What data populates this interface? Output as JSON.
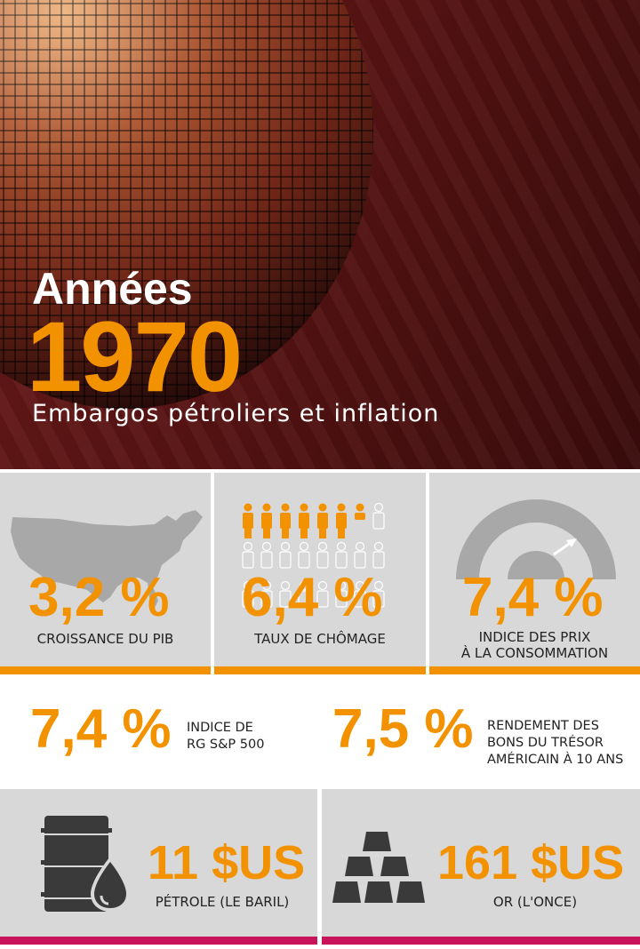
{
  "hero": {
    "title": "Années",
    "year": "1970",
    "subtitle": "Embargos pétroliers et inflation"
  },
  "stats_top": [
    {
      "value": "3,2 %",
      "label": "CROISSANCE DU PIB",
      "icon": "usa-map-icon"
    },
    {
      "value": "6,4 %",
      "label": "TAUX DE CHÔMAGE",
      "icon": "people-icon"
    },
    {
      "value": "7,4 %",
      "label_line1": "INDICE DES PRIX",
      "label_line2": "À LA CONSOMMATION",
      "icon": "gauge-icon"
    }
  ],
  "stats_middle": [
    {
      "value": "7,4 %",
      "label_line1": "INDICE DE",
      "label_line2": "RG S&P 500"
    },
    {
      "value": "7,5 %",
      "label_line1": "RENDEMENT DES",
      "label_line2": "BONS DU TRÉSOR",
      "label_line3": "AMÉRICAIN À 10 ANS"
    }
  ],
  "stats_bottom": [
    {
      "value": "11 $US",
      "label": "PÉTROLE (LE BARIL)",
      "icon": "oil-barrel-icon"
    },
    {
      "value": "161 $US",
      "label": "OR (L'ONCE)",
      "icon": "gold-bars-icon"
    }
  ],
  "colors": {
    "accent_orange": "#f39200",
    "accent_magenta": "#c8145a",
    "card_gray": "#d8d8d8",
    "icon_gray": "#a8a8a8",
    "icon_dark": "#3a3a3a"
  },
  "unemployment_icon": {
    "highlighted_people": 6.4,
    "total_people": 8
  }
}
